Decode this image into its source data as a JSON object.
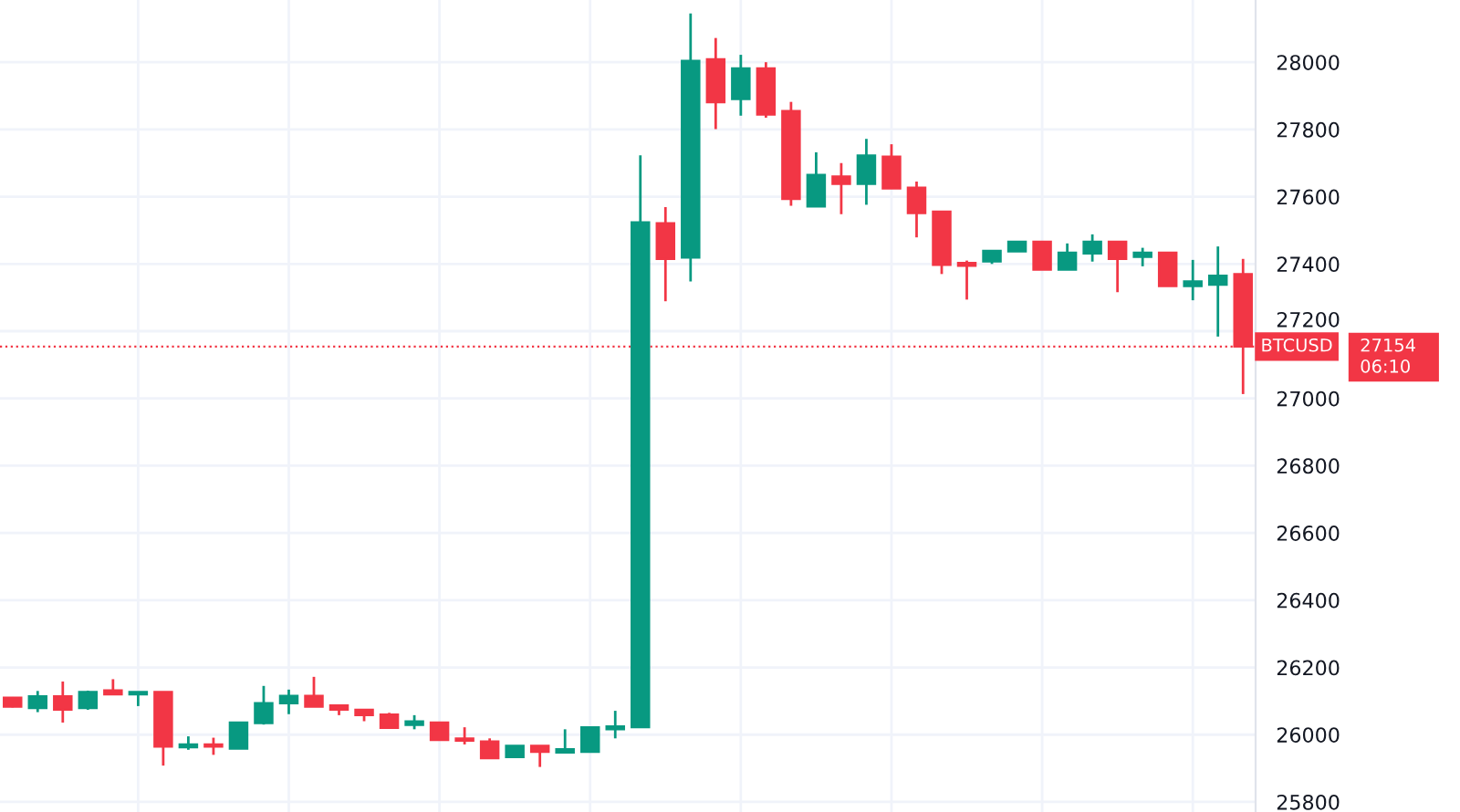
{
  "chart_data": {
    "type": "candlestick",
    "categories": [
      null,
      null,
      null,
      null,
      null,
      null,
      null,
      null,
      null,
      null,
      null,
      null,
      null,
      null,
      null,
      null,
      null,
      null,
      null,
      null,
      null,
      null,
      null,
      null,
      null,
      null,
      null,
      null,
      null,
      null,
      null,
      null,
      null,
      null,
      null,
      null,
      null,
      null,
      null,
      null,
      null,
      null,
      null,
      null,
      null,
      null,
      null,
      null,
      null,
      null
    ],
    "ohlc": [
      [
        26110,
        26112,
        26081,
        26083
      ],
      [
        26079,
        26130,
        26067,
        26114
      ],
      [
        26114,
        26158,
        26036,
        26074
      ],
      [
        26079,
        26131,
        26074,
        26127
      ],
      [
        26132,
        26165,
        26120,
        26120
      ],
      [
        26120,
        26127,
        26085,
        26127
      ],
      [
        26127,
        26127,
        25908,
        25964
      ],
      [
        25962,
        25995,
        25955,
        25971
      ],
      [
        25971,
        25991,
        25940,
        25964
      ],
      [
        25958,
        26036,
        25958,
        26036
      ],
      [
        26034,
        26145,
        26030,
        26094
      ],
      [
        26093,
        26134,
        26061,
        26116
      ],
      [
        26116,
        26172,
        26083,
        26083
      ],
      [
        26087,
        26087,
        26058,
        26074
      ],
      [
        26074,
        26076,
        26040,
        26058
      ],
      [
        26060,
        26065,
        26018,
        26020
      ],
      [
        26029,
        26058,
        26016,
        26040
      ],
      [
        26036,
        26036,
        25984,
        25984
      ],
      [
        25989,
        26022,
        25971,
        25982
      ],
      [
        25980,
        25989,
        25930,
        25930
      ],
      [
        25933,
        25967,
        25933,
        25967
      ],
      [
        25967,
        25967,
        25904,
        25949
      ],
      [
        25947,
        26016,
        25947,
        25957
      ],
      [
        25949,
        26022,
        25949,
        26022
      ],
      [
        26016,
        26071,
        25989,
        26025
      ],
      [
        26022,
        27723,
        26022,
        27524
      ],
      [
        27521,
        27569,
        27289,
        27415
      ],
      [
        27419,
        28145,
        27348,
        28004
      ],
      [
        28009,
        28072,
        27801,
        27881
      ],
      [
        27890,
        28022,
        27841,
        27982
      ],
      [
        27982,
        28000,
        27835,
        27844
      ],
      [
        27855,
        27882,
        27573,
        27593
      ],
      [
        27571,
        27732,
        27571,
        27665
      ],
      [
        27660,
        27700,
        27548,
        27638
      ],
      [
        27638,
        27772,
        27576,
        27723
      ],
      [
        27719,
        27756,
        27624,
        27624
      ],
      [
        27627,
        27645,
        27479,
        27551
      ],
      [
        27556,
        27556,
        27370,
        27397
      ],
      [
        27403,
        27410,
        27294,
        27394
      ],
      [
        27407,
        27439,
        27400,
        27439
      ],
      [
        27437,
        27466,
        27437,
        27466
      ],
      [
        27466,
        27466,
        27383,
        27383
      ],
      [
        27383,
        27461,
        27383,
        27434
      ],
      [
        27431,
        27488,
        27407,
        27466
      ],
      [
        27466,
        27466,
        27316,
        27415
      ],
      [
        27421,
        27448,
        27393,
        27434
      ],
      [
        27434,
        27434,
        27334,
        27334
      ],
      [
        27334,
        27412,
        27292,
        27348
      ],
      [
        27338,
        27452,
        27184,
        27365
      ],
      [
        27370,
        27415,
        27013,
        27154
      ]
    ],
    "colors": [
      "#f23645",
      "#089981",
      "#f23645",
      "#089981",
      "#f23645",
      "#089981",
      "#f23645",
      "#089981",
      "#f23645",
      "#089981",
      "#089981",
      "#089981",
      "#f23645",
      "#f23645",
      "#f23645",
      "#f23645",
      "#089981",
      "#f23645",
      "#f23645",
      "#f23645",
      "#089981",
      "#f23645",
      "#089981",
      "#089981",
      "#089981",
      "#089981",
      "#f23645",
      "#089981",
      "#f23645",
      "#089981",
      "#f23645",
      "#f23645",
      "#089981",
      "#f23645",
      "#089981",
      "#f23645",
      "#f23645",
      "#f23645",
      "#f23645",
      "#089981",
      "#089981",
      "#f23645",
      "#089981",
      "#089981",
      "#f23645",
      "#089981",
      "#f23645",
      "#089981",
      "#089981",
      "#f23645"
    ],
    "ylim": [
      25770,
      28185
    ],
    "yticks": [
      25800,
      26000,
      26200,
      26400,
      26600,
      26800,
      27000,
      27200,
      27400,
      27600,
      27800,
      28000
    ],
    "grid": true,
    "tick_labels": "y",
    "ref_lines": [
      {
        "axis": "y",
        "value": 27154,
        "label": "BTCUSD",
        "color": "#f23645",
        "line_style": "dotted"
      }
    ],
    "annotations": [
      "27154",
      "06:10"
    ]
  }
}
